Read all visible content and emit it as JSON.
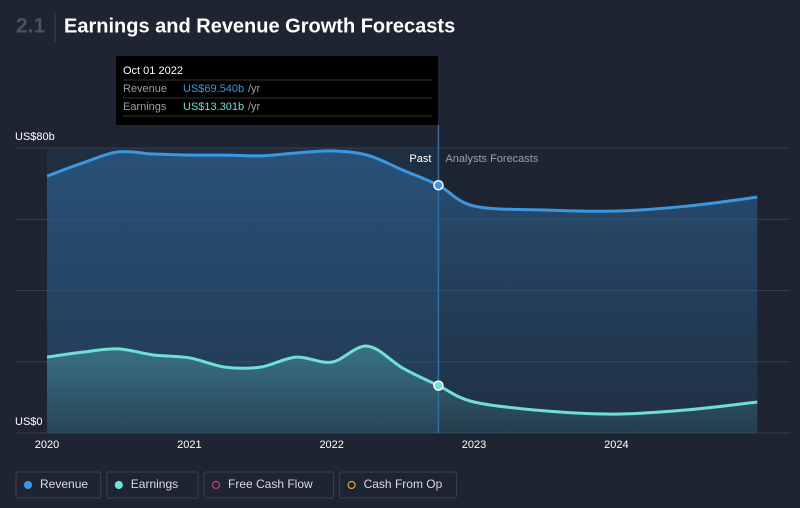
{
  "chart_data": {
    "type": "line",
    "section": "2.1",
    "title": "Earnings and Revenue Growth Forecasts",
    "x": [
      2020,
      2020.25,
      2020.5,
      2020.75,
      2021,
      2021.25,
      2021.5,
      2021.75,
      2022,
      2022.25,
      2022.5,
      2022.75,
      2023,
      2023.5,
      2024,
      2024.5,
      2024.99
    ],
    "series": [
      {
        "name": "Revenue",
        "color": "#3a97e0",
        "values": [
          72.1,
          75.8,
          78.9,
          78.3,
          78.0,
          78.0,
          77.8,
          78.6,
          79.2,
          78.0,
          73.8,
          69.54,
          63.7,
          62.6,
          62.3,
          63.7,
          66.2
        ]
      },
      {
        "name": "Earnings",
        "color": "#6ee0d6",
        "values": [
          21.3,
          22.7,
          23.6,
          21.9,
          21.1,
          18.5,
          18.5,
          21.3,
          19.9,
          24.4,
          18.2,
          13.301,
          8.7,
          6.2,
          5.3,
          6.5,
          8.7
        ]
      }
    ],
    "xlim": [
      2019.775,
      2025.22
    ],
    "xticks": [
      2020,
      2021,
      2022,
      2023,
      2024
    ],
    "ylim": [
      0,
      80
    ],
    "yticks": [
      {
        "value": 0,
        "label": "US$0"
      },
      {
        "value": 80,
        "label": "US$80b"
      }
    ],
    "grid_values": [
      0,
      20,
      40,
      60,
      80
    ],
    "forecast_start": 2022.75,
    "past_label": "Past",
    "forecast_label": "Analysts Forecasts",
    "tooltip": {
      "date": "Oct 01 2022",
      "items": [
        {
          "value": "US$69.540b",
          "unit": "/yr"
        },
        {
          "value": "US$13.301b",
          "unit": "/yr"
        }
      ]
    },
    "legend": [
      {
        "name": "Revenue",
        "color": "#3a97e0"
      },
      {
        "name": "Earnings",
        "color": "#6ee0d6"
      },
      {
        "name": "Free Cash Flow",
        "color": "#c2407a"
      },
      {
        "name": "Cash From Op",
        "color": "#e0a040"
      }
    ]
  }
}
